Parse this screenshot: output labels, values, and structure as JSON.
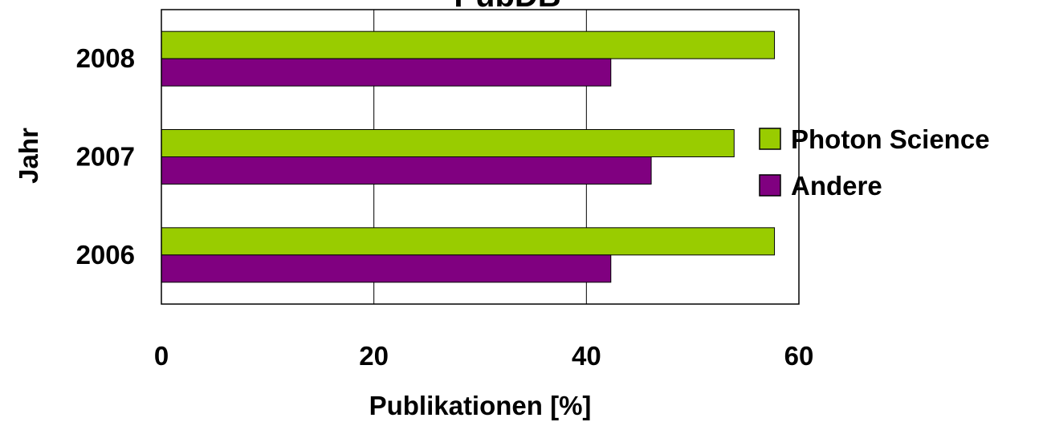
{
  "chart_data": {
    "type": "bar",
    "orientation": "horizontal",
    "title": "PubDB",
    "xlabel": "Publikationen [%]",
    "ylabel": "Jahr",
    "categories": [
      "2008",
      "2007",
      "2006"
    ],
    "series": [
      {
        "name": "Photon Science",
        "values": [
          57.7,
          53.9,
          57.7
        ],
        "color": "#99cc00"
      },
      {
        "name": "Andere",
        "values": [
          42.3,
          46.1,
          42.3
        ],
        "color": "#800080"
      }
    ],
    "xlim": [
      0,
      60
    ],
    "x_ticks": [
      "0",
      "20",
      "40",
      "60"
    ],
    "grid": true,
    "legend_position": "right"
  }
}
